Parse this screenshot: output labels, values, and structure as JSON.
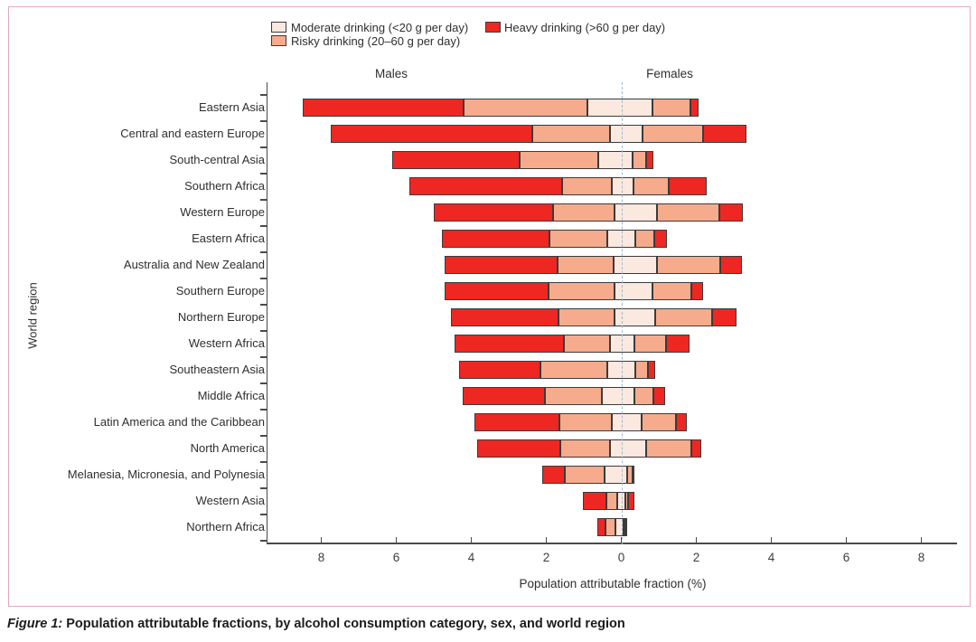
{
  "figure": {
    "caption_label": "Figure 1:",
    "caption_text": " Population attributable fractions, by alcohol consumption category, sex, and world region"
  },
  "legend": [
    {
      "key": "moderate",
      "label": "Moderate drinking (<20 g per day)",
      "color": "#fbe8df"
    },
    {
      "key": "risky",
      "label": "Risky drinking (20–60 g per day)",
      "color": "#f5ab8c"
    },
    {
      "key": "heavy",
      "label": "Heavy drinking (>60 g per day)",
      "color": "#ee2722"
    }
  ],
  "colors": {
    "moderate": "#fbe8df",
    "risky": "#f5ab8c",
    "heavy": "#ee2722",
    "segment_border": "#3b3b3b",
    "zero_line": "#a4bac9",
    "axis": "#4a4a4a",
    "panel_border": "#e3a9bb",
    "text": "#2f2f2f"
  },
  "chart_data": {
    "type": "bar",
    "variant": "diverging_stacked_horizontal",
    "title": "",
    "xlabel": "Population attributable fraction (%)",
    "ylabel": "World region",
    "left_side_label": "Males",
    "right_side_label": "Females",
    "x_tick_values": [
      -8,
      -6,
      -4,
      -2,
      0,
      2,
      4,
      6,
      8
    ],
    "x_tick_labels": [
      "8",
      "6",
      "4",
      "2",
      "0",
      "2",
      "4",
      "6",
      "8"
    ],
    "xlim": [
      -9.2,
      9.2
    ],
    "grid": false,
    "legend_position": "top",
    "stack_order_from_zero": [
      "moderate",
      "risky",
      "heavy"
    ],
    "units": "percent",
    "rows": [
      {
        "region": "Eastern Asia",
        "males": {
          "moderate": 0.9,
          "risky": 3.3,
          "heavy": 4.3
        },
        "females": {
          "moderate": 0.83,
          "risky": 1.01,
          "heavy": 0.22
        }
      },
      {
        "region": "Central and eastern Europe",
        "males": {
          "moderate": 0.31,
          "risky": 2.07,
          "heavy": 5.36
        },
        "females": {
          "moderate": 0.56,
          "risky": 1.62,
          "heavy": 1.15
        }
      },
      {
        "region": "South-central Asia",
        "males": {
          "moderate": 0.62,
          "risky": 2.09,
          "heavy": 3.4
        },
        "females": {
          "moderate": 0.3,
          "risky": 0.37,
          "heavy": 0.18
        }
      },
      {
        "region": "Southern Africa",
        "males": {
          "moderate": 0.26,
          "risky": 1.31,
          "heavy": 4.08
        },
        "females": {
          "moderate": 0.32,
          "risky": 0.95,
          "heavy": 1.0
        }
      },
      {
        "region": "Western Europe",
        "males": {
          "moderate": 0.17,
          "risky": 1.64,
          "heavy": 3.19
        },
        "females": {
          "moderate": 0.94,
          "risky": 1.68,
          "heavy": 0.62
        }
      },
      {
        "region": "Eastern Africa",
        "males": {
          "moderate": 0.38,
          "risky": 1.53,
          "heavy": 2.88
        },
        "females": {
          "moderate": 0.37,
          "risky": 0.5,
          "heavy": 0.34
        }
      },
      {
        "region": "Australia and New Zealand",
        "males": {
          "moderate": 0.21,
          "risky": 1.49,
          "heavy": 3.0
        },
        "females": {
          "moderate": 0.94,
          "risky": 1.7,
          "heavy": 0.58
        }
      },
      {
        "region": "Southern Europe",
        "males": {
          "moderate": 0.17,
          "risky": 1.77,
          "heavy": 2.76
        },
        "females": {
          "moderate": 0.82,
          "risky": 1.04,
          "heavy": 0.32
        }
      },
      {
        "region": "Northern Europe",
        "males": {
          "moderate": 0.17,
          "risky": 1.5,
          "heavy": 2.88
        },
        "females": {
          "moderate": 0.91,
          "risky": 1.52,
          "heavy": 0.64
        }
      },
      {
        "region": "Western Africa",
        "males": {
          "moderate": 0.29,
          "risky": 1.25,
          "heavy": 2.91
        },
        "females": {
          "moderate": 0.35,
          "risky": 0.84,
          "heavy": 0.63
        }
      },
      {
        "region": "Southeastern Asia",
        "males": {
          "moderate": 0.37,
          "risky": 1.78,
          "heavy": 2.18
        },
        "females": {
          "moderate": 0.37,
          "risky": 0.33,
          "heavy": 0.21
        }
      },
      {
        "region": "Middle Africa",
        "males": {
          "moderate": 0.51,
          "risky": 1.53,
          "heavy": 2.19
        },
        "females": {
          "moderate": 0.35,
          "risky": 0.51,
          "heavy": 0.32
        }
      },
      {
        "region": "Latin America and the Caribbean",
        "males": {
          "moderate": 0.25,
          "risky": 1.4,
          "heavy": 2.27
        },
        "females": {
          "moderate": 0.55,
          "risky": 0.91,
          "heavy": 0.29
        }
      },
      {
        "region": "North America",
        "males": {
          "moderate": 0.29,
          "risky": 1.34,
          "heavy": 2.21
        },
        "females": {
          "moderate": 0.67,
          "risky": 1.2,
          "heavy": 0.27
        }
      },
      {
        "region": "Melanesia, Micronesia, and Polynesia",
        "males": {
          "moderate": 0.45,
          "risky": 1.06,
          "heavy": 0.6
        },
        "females": {
          "moderate": 0.16,
          "risky": 0.14,
          "heavy": 0.05
        }
      },
      {
        "region": "Western Asia",
        "males": {
          "moderate": 0.1,
          "risky": 0.29,
          "heavy": 0.63
        },
        "females": {
          "moderate": 0.11,
          "risky": 0.08,
          "heavy": 0.17
        }
      },
      {
        "region": "Northern Africa",
        "males": {
          "moderate": 0.16,
          "risky": 0.26,
          "heavy": 0.21
        },
        "females": {
          "moderate": 0.05,
          "risky": 0.06,
          "heavy": 0.04
        }
      }
    ]
  }
}
